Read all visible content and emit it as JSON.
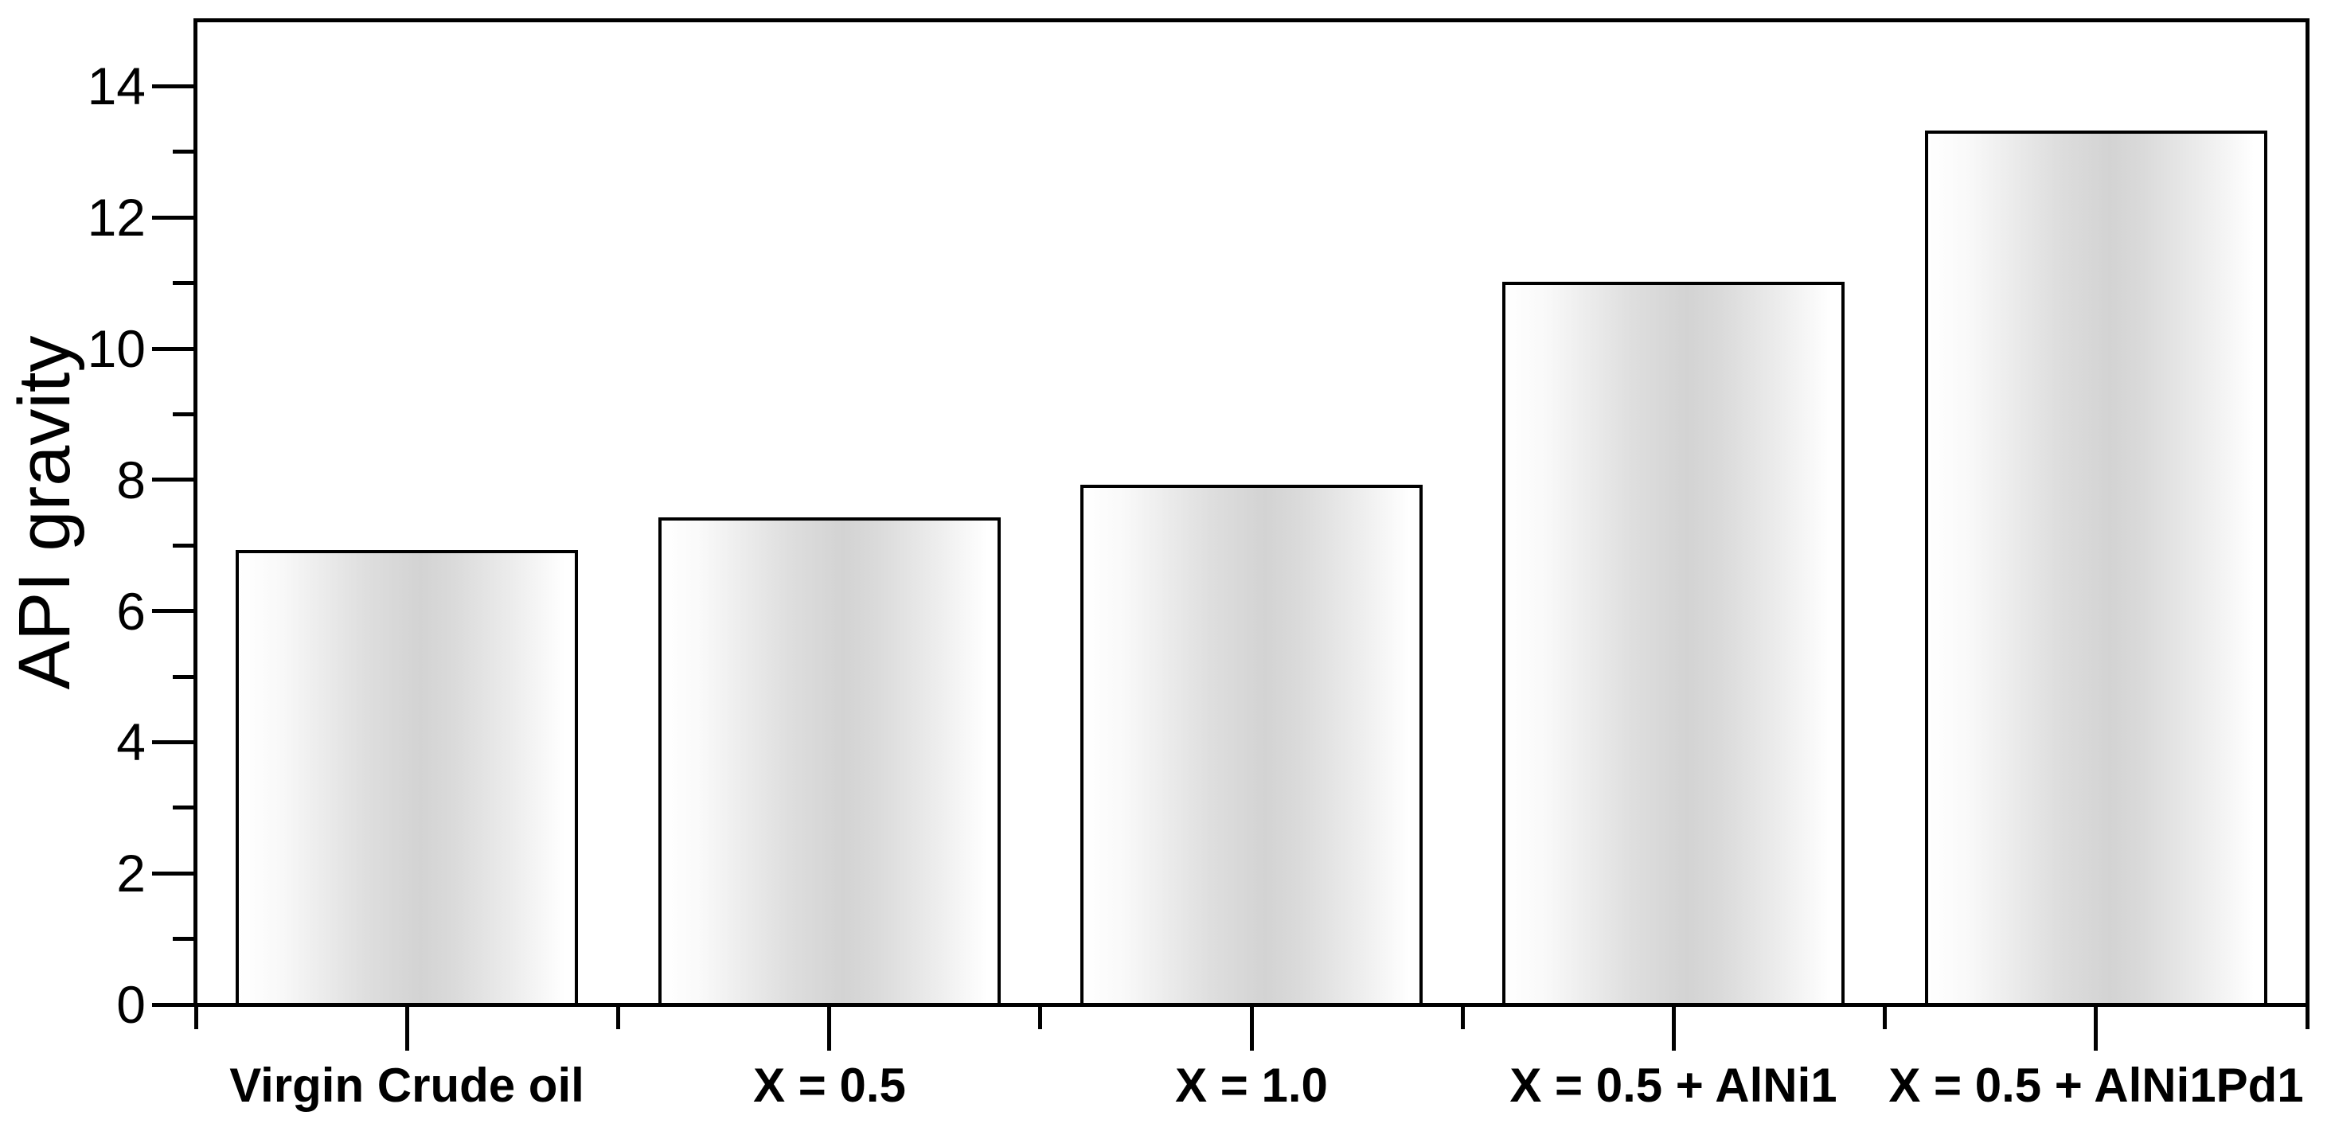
{
  "figure": {
    "background": "#ffffff",
    "text_color": "#000000",
    "axis_color": "#000000"
  },
  "chart_data": {
    "type": "bar",
    "title": "",
    "xlabel": "",
    "ylabel": "API gravity",
    "categories": [
      "Virgin Crude oil",
      "X = 0.5",
      "X = 1.0",
      "X = 0.5 + AlNi1",
      "X = 0.5 + AlNi1Pd1"
    ],
    "values": [
      6.9,
      7.4,
      7.9,
      11.0,
      13.3
    ],
    "ylim": [
      0,
      15
    ],
    "y_major_ticks": [
      0,
      2,
      4,
      6,
      8,
      10,
      12,
      14
    ],
    "y_major_tick_labels": [
      "0",
      "2",
      "4",
      "6",
      "8",
      "10",
      "12",
      "14"
    ],
    "y_minor_ticks": [
      1,
      3,
      5,
      7,
      9,
      11,
      13
    ],
    "grid": false,
    "legend": null,
    "bar_style": {
      "border_color": "#000000",
      "fill_edge_color": "#ffffff",
      "fill_center_color": "#d3d3d3",
      "fill_description": "horizontal gradient: white at bar edges, light gray near bar center"
    }
  }
}
